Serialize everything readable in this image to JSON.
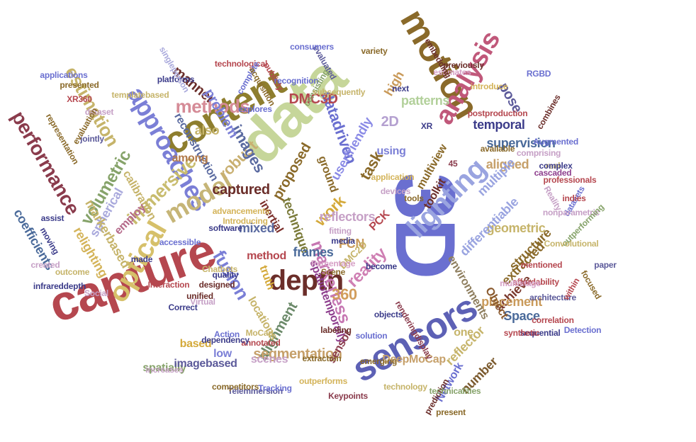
{
  "word_cloud": {
    "words": [
      {
        "text": "3D",
        "color": "#6a6fd0"
      },
      {
        "text": "capture",
        "color": "#b5474f"
      },
      {
        "text": "data",
        "color": "#c6d69a"
      },
      {
        "text": "sensors",
        "color": "#5d61b5"
      },
      {
        "text": "content",
        "color": "#8e7e2e"
      },
      {
        "text": "motion",
        "color": "#8a6a2a"
      },
      {
        "text": "optical",
        "color": "#d6c06a"
      },
      {
        "text": "approaches",
        "color": "#7b7fd6"
      },
      {
        "text": "depth",
        "color": "#6b2e2a"
      },
      {
        "text": "lighting",
        "color": "#9aa4e0"
      },
      {
        "text": "analysis",
        "color": "#c0587a"
      },
      {
        "text": "model",
        "color": "#c6b577"
      },
      {
        "text": "immersive",
        "color": "#c8bc6e"
      },
      {
        "text": "methods",
        "color": "#d58b97"
      },
      {
        "text": "estimation",
        "color": "#c6b46a"
      },
      {
        "text": "performance",
        "color": "#8a3b4c"
      },
      {
        "text": "volumetric",
        "color": "#86a36a"
      },
      {
        "text": "fusion",
        "color": "#7a7fd6"
      },
      {
        "text": "markerless",
        "color": "#c677b2"
      },
      {
        "text": "reality",
        "color": "#cf7fb3"
      },
      {
        "text": "360",
        "color": "#d29d5c"
      },
      {
        "text": "robust",
        "color": "#c9b071"
      },
      {
        "text": "images",
        "color": "#5a6aa0"
      },
      {
        "text": "captured",
        "color": "#6b2e2a"
      },
      {
        "text": "task",
        "color": "#8a6a2a"
      },
      {
        "text": "work",
        "color": "#d4a93a"
      },
      {
        "text": "datadriven",
        "color": "#6a6fd0"
      },
      {
        "text": "userfriendly",
        "color": "#8a8ae6"
      },
      {
        "text": "proposed",
        "color": "#8a6a2a"
      },
      {
        "text": "technique",
        "color": "#7b7b3a"
      },
      {
        "text": "alignment",
        "color": "#6c8a6a"
      },
      {
        "text": "segmentation",
        "color": "#c6a06a"
      },
      {
        "text": "spatiotemporally",
        "color": "#8e3f8e"
      },
      {
        "text": "pose",
        "color": "#5c5a9a"
      },
      {
        "text": "temporal",
        "color": "#3c3c8a"
      },
      {
        "text": "supervision",
        "color": "#4a6a9a"
      },
      {
        "text": "aligned",
        "color": "#c6a06a"
      },
      {
        "text": "multiple",
        "color": "#9aa4e0"
      },
      {
        "text": "high",
        "color": "#c99a5a"
      },
      {
        "text": "patterns",
        "color": "#b2d09a"
      },
      {
        "text": "2D",
        "color": "#b4a0d0"
      },
      {
        "text": "reconstruction",
        "color": "#5a6aa0"
      },
      {
        "text": "manner",
        "color": "#6b2e2a"
      },
      {
        "text": "problem",
        "color": "#7b7fd6"
      },
      {
        "text": "DMC3D",
        "color": "#b5474f"
      },
      {
        "text": "also",
        "color": "#c6b46a"
      },
      {
        "text": "spherical",
        "color": "#a9a9dc"
      },
      {
        "text": "calibration",
        "color": "#c6b46a"
      },
      {
        "text": "among",
        "color": "#b27a4a"
      },
      {
        "text": "markerbased",
        "color": "#c6b46a"
      },
      {
        "text": "relighting",
        "color": "#d4b45a"
      },
      {
        "text": "coefficients",
        "color": "#4a6a9a"
      },
      {
        "text": "employ",
        "color": "#b56a8a"
      },
      {
        "text": "inertial",
        "color": "#7b2e2a"
      },
      {
        "text": "method",
        "color": "#b5474f"
      },
      {
        "text": "mixed",
        "color": "#5a6aa0"
      },
      {
        "text": "frames",
        "color": "#4a6a9a"
      },
      {
        "text": "reflectors",
        "color": "#c6a0c6"
      },
      {
        "text": "FCN",
        "color": "#c99a5a"
      },
      {
        "text": "truth",
        "color": "#d4a93a"
      },
      {
        "text": "ground",
        "color": "#8a6a2a"
      },
      {
        "text": "using",
        "color": "#7b7fd6"
      },
      {
        "text": "geometric",
        "color": "#c6b46a"
      },
      {
        "text": "structure",
        "color": "#8a6a2a"
      },
      {
        "text": "differentiable",
        "color": "#9aa4e0"
      },
      {
        "text": "toolkit",
        "color": "#6b2e2a"
      },
      {
        "text": "multiview",
        "color": "#8a6a2a"
      },
      {
        "text": "achieve",
        "color": "#7b3a2e"
      },
      {
        "text": "placement",
        "color": "#c99a5a"
      },
      {
        "text": "environments",
        "color": "#8e7e5e"
      },
      {
        "text": "extracted",
        "color": "#8a6a2a"
      },
      {
        "text": "reflector",
        "color": "#c6b46a"
      },
      {
        "text": "number",
        "color": "#7b5a2e"
      },
      {
        "text": "Space",
        "color": "#4a6a9a"
      },
      {
        "text": "Object",
        "color": "#8a5a2e"
      },
      {
        "text": "one",
        "color": "#c6b46a"
      },
      {
        "text": "Network",
        "color": "#6a6fd0"
      },
      {
        "text": "DeepMoCap",
        "color": "#c6a06a"
      },
      {
        "text": "sensor",
        "color": "#8a3b4c"
      },
      {
        "text": "locations",
        "color": "#c6b46a"
      },
      {
        "text": "scenes",
        "color": "#c6a0c6"
      },
      {
        "text": "low",
        "color": "#7b7fd6"
      },
      {
        "text": "based",
        "color": "#d4a93a"
      },
      {
        "text": "spatially",
        "color": "#86a36a"
      },
      {
        "text": "imagebased",
        "color": "#5c5a9a"
      },
      {
        "text": "PCK",
        "color": "#b5474f"
      },
      {
        "text": "DMC2D",
        "color": "#c6b46a"
      }
    ],
    "small_words": [
      {
        "text": "applications",
        "color": "#6a6fd0"
      },
      {
        "text": "presented",
        "color": "#8a6a2a"
      },
      {
        "text": "XR360",
        "color": "#b5474f"
      },
      {
        "text": "platforms",
        "color": "#3c3c8a"
      },
      {
        "text": "templatebased",
        "color": "#c6b46a"
      },
      {
        "text": "technological",
        "color": "#b5474f"
      },
      {
        "text": "complete",
        "color": "#6a6fd0"
      },
      {
        "text": "evaluated",
        "color": "#5c5a9a"
      },
      {
        "text": "consumers",
        "color": "#6a6fd0"
      },
      {
        "text": "acquisition",
        "color": "#8a6a2a"
      },
      {
        "text": "publicly",
        "color": "#b5474f"
      },
      {
        "text": "explores",
        "color": "#6a6fd0"
      },
      {
        "text": "recognition",
        "color": "#6a6fd0"
      },
      {
        "text": "consisting",
        "color": "#86a36a"
      },
      {
        "text": "subsequently",
        "color": "#c6b46a"
      },
      {
        "text": "jointly",
        "color": "#5c5a9a"
      },
      {
        "text": "dataset",
        "color": "#c6a0c6"
      },
      {
        "text": "evaluation",
        "color": "#8a6a2a"
      },
      {
        "text": "representation",
        "color": "#8a6a2a"
      },
      {
        "text": "singleperson",
        "color": "#a9a9dc"
      },
      {
        "text": "estimates",
        "color": "#d6a0c6"
      },
      {
        "text": "introduce",
        "color": "#d4b45a"
      },
      {
        "text": "RGBD",
        "color": "#6a6fd0"
      },
      {
        "text": "previously",
        "color": "#6b2e2a"
      },
      {
        "text": "postproduction",
        "color": "#b5474f"
      },
      {
        "text": "available",
        "color": "#8a6a2a"
      },
      {
        "text": "combines",
        "color": "#6b2e2a"
      },
      {
        "text": "embedding",
        "color": "#6b2e2a"
      },
      {
        "text": "application",
        "color": "#d4b45a"
      },
      {
        "text": "devices",
        "color": "#c6a0c6"
      },
      {
        "text": "tools",
        "color": "#8a6a2a"
      },
      {
        "text": "Augmented",
        "color": "#6a6fd0"
      },
      {
        "text": "real",
        "color": "#c6b46a"
      },
      {
        "text": "professionals",
        "color": "#b5474f"
      },
      {
        "text": "comprising",
        "color": "#c6a0c6"
      },
      {
        "text": "cascaded",
        "color": "#8e3f8e"
      },
      {
        "text": "complex",
        "color": "#3c3c8a"
      },
      {
        "text": "Reality",
        "color": "#c6a0c6"
      },
      {
        "text": "datasets",
        "color": "#6a6fd0"
      },
      {
        "text": "nonparametric",
        "color": "#c6a0c6"
      },
      {
        "text": "indies",
        "color": "#b5474f"
      },
      {
        "text": "outperforming",
        "color": "#86a36a"
      },
      {
        "text": "Convolutional",
        "color": "#c6b46a"
      },
      {
        "text": "mentioned",
        "color": "#b5474f"
      },
      {
        "text": "affordability",
        "color": "#b5474f"
      },
      {
        "text": "multistage",
        "color": "#d6a0c6"
      },
      {
        "text": "architecture",
        "color": "#5c5a9a"
      },
      {
        "text": "correlation",
        "color": "#b5474f"
      },
      {
        "text": "Detection",
        "color": "#6a6fd0"
      },
      {
        "text": "paper",
        "color": "#5c5a9a"
      },
      {
        "text": "within",
        "color": "#b5474f"
      },
      {
        "text": "focused",
        "color": "#8a6a2a"
      },
      {
        "text": "sequential",
        "color": "#3c3c8a"
      },
      {
        "text": "synthetic",
        "color": "#b5474f"
      },
      {
        "text": "present",
        "color": "#8a6a2a"
      },
      {
        "text": "prediction",
        "color": "#6b2e2a"
      },
      {
        "text": "technicalities",
        "color": "#86a36a"
      },
      {
        "text": "renderingdisplay",
        "color": "#8a3b4c"
      },
      {
        "text": "solution",
        "color": "#6a6fd0"
      },
      {
        "text": "emerging",
        "color": "#8a6a2a"
      },
      {
        "text": "technology",
        "color": "#c6b46a"
      },
      {
        "text": "outperforms",
        "color": "#d4b45a"
      },
      {
        "text": "Telemmersion",
        "color": "#5c5a9a"
      },
      {
        "text": "Tracking",
        "color": "#6a6fd0"
      },
      {
        "text": "annotated",
        "color": "#b5474f"
      },
      {
        "text": "competitors",
        "color": "#8a6a2a"
      },
      {
        "text": "dependency",
        "color": "#3c3c8a"
      },
      {
        "text": "designed",
        "color": "#6b2e2a"
      },
      {
        "text": "increases",
        "color": "#c6a0c6"
      },
      {
        "text": "quality",
        "color": "#3c3c8a"
      },
      {
        "text": "unified",
        "color": "#6b2e2a"
      },
      {
        "text": "Correct",
        "color": "#3c3c8a"
      },
      {
        "text": "Interaction",
        "color": "#b5474f"
      },
      {
        "text": "Social",
        "color": "#c6a0c6"
      },
      {
        "text": "infrareddepth",
        "color": "#3c3c8a"
      },
      {
        "text": "outcome",
        "color": "#c6b46a"
      },
      {
        "text": "created",
        "color": "#c6a0c6"
      },
      {
        "text": "moving",
        "color": "#3c3c8a"
      },
      {
        "text": "assist",
        "color": "#3c3c8a"
      },
      {
        "text": "made",
        "color": "#3c3c8a"
      },
      {
        "text": "accessible",
        "color": "#6a6fd0"
      },
      {
        "text": "software",
        "color": "#3c3c8a"
      },
      {
        "text": "Introducing",
        "color": "#d4b45a"
      },
      {
        "text": "advancements",
        "color": "#d4b45a"
      },
      {
        "text": "Percentage",
        "color": "#d6a0c6"
      },
      {
        "text": "fitting",
        "color": "#c6a0c6"
      },
      {
        "text": "media",
        "color": "#3c3c8a"
      },
      {
        "text": "become",
        "color": "#3c3c8a"
      },
      {
        "text": "objects",
        "color": "#3c3c8a"
      },
      {
        "text": "labeling",
        "color": "#6b2e2a"
      },
      {
        "text": "MoCap",
        "color": "#c6b46a"
      },
      {
        "text": "Action",
        "color": "#6a6fd0"
      },
      {
        "text": "Chatbots",
        "color": "#c6b46a"
      },
      {
        "text": "Virtual",
        "color": "#c6a0c6"
      },
      {
        "text": "Scene",
        "color": "#8a6a2a"
      },
      {
        "text": "extraction",
        "color": "#8a6a2a"
      },
      {
        "text": "Keypoints",
        "color": "#8a3b4c"
      },
      {
        "text": "variety",
        "color": "#8a6a2a"
      },
      {
        "text": "next",
        "color": "#3c3c8a"
      },
      {
        "text": "XR",
        "color": "#3c3c8a"
      },
      {
        "text": "45",
        "color": "#8a3b4c"
      }
    ]
  }
}
